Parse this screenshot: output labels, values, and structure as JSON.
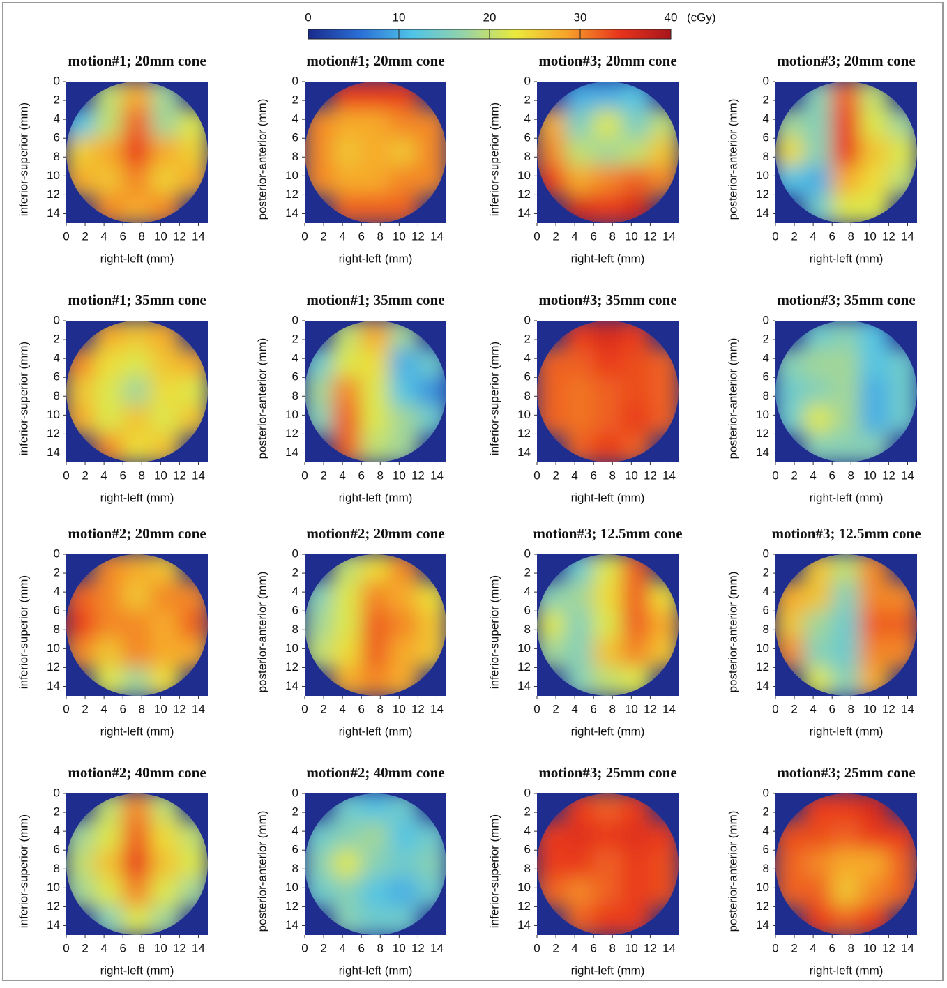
{
  "colorscale": {
    "label": "(cGy)",
    "lim": [
      0,
      40
    ],
    "ticks": [
      0,
      10,
      20,
      30,
      40
    ],
    "colors": [
      "#1a2a8c",
      "#2a6fd6",
      "#4fc3e8",
      "#95d3a8",
      "#eaea3c",
      "#f7a32a",
      "#e8341c",
      "#a8161c"
    ]
  },
  "chart_data": [
    {
      "type": "heatmap",
      "title": "motion#1; 20mm cone",
      "x_label": "right-left (mm)",
      "y_label": "inferior-superior (mm)",
      "xlim": [
        0,
        15
      ],
      "ylim": [
        0,
        15
      ],
      "xticks": [
        0,
        2,
        4,
        6,
        8,
        10,
        12,
        14
      ],
      "yticks": [
        0,
        2,
        4,
        6,
        8,
        10,
        12,
        14
      ],
      "values": [
        [
          null,
          20,
          28,
          18,
          null
        ],
        [
          12,
          20,
          32,
          18,
          22
        ],
        [
          25,
          28,
          34,
          28,
          25
        ],
        [
          28,
          26,
          30,
          25,
          28
        ],
        [
          null,
          30,
          28,
          30,
          null
        ]
      ]
    },
    {
      "type": "heatmap",
      "title": "motion#1; 20mm cone",
      "x_label": "right-left (mm)",
      "y_label": "posterior-anterior (mm)",
      "xlim": [
        0,
        15
      ],
      "ylim": [
        0,
        15
      ],
      "xticks": [
        0,
        2,
        4,
        6,
        8,
        10,
        12,
        14
      ],
      "yticks": [
        0,
        2,
        4,
        6,
        8,
        10,
        12,
        14
      ],
      "values": [
        [
          null,
          34,
          34,
          34,
          null
        ],
        [
          30,
          28,
          28,
          30,
          30
        ],
        [
          30,
          26,
          28,
          26,
          30
        ],
        [
          30,
          28,
          28,
          30,
          30
        ],
        [
          null,
          32,
          32,
          32,
          null
        ]
      ]
    },
    {
      "type": "heatmap",
      "title": "motion#3; 20mm cone",
      "x_label": "right-left (mm)",
      "y_label": "inferior-superior (mm)",
      "xlim": [
        0,
        15
      ],
      "ylim": [
        0,
        15
      ],
      "xticks": [
        0,
        2,
        4,
        6,
        8,
        10,
        12,
        14
      ],
      "yticks": [
        0,
        2,
        4,
        6,
        8,
        10,
        12,
        14
      ],
      "values": [
        [
          null,
          10,
          10,
          12,
          null
        ],
        [
          28,
          15,
          22,
          15,
          20
        ],
        [
          30,
          20,
          18,
          20,
          26
        ],
        [
          34,
          28,
          30,
          32,
          30
        ],
        [
          null,
          36,
          34,
          36,
          null
        ]
      ]
    },
    {
      "type": "heatmap",
      "title": "motion#3; 20mm cone",
      "x_label": "right-left (mm)",
      "y_label": "posterior-anterior (mm)",
      "xlim": [
        0,
        15
      ],
      "ylim": [
        0,
        15
      ],
      "xticks": [
        0,
        2,
        4,
        6,
        8,
        10,
        12,
        14
      ],
      "yticks": [
        0,
        2,
        4,
        6,
        8,
        10,
        12,
        14
      ],
      "values": [
        [
          null,
          16,
          32,
          20,
          null
        ],
        [
          18,
          16,
          34,
          22,
          18
        ],
        [
          24,
          16,
          34,
          26,
          22
        ],
        [
          12,
          10,
          28,
          24,
          20
        ],
        [
          null,
          14,
          22,
          22,
          null
        ]
      ]
    },
    {
      "type": "heatmap",
      "title": "motion#1; 35mm cone",
      "x_label": "right-left (mm)",
      "y_label": "inferior-superior (mm)",
      "xlim": [
        0,
        15
      ],
      "ylim": [
        0,
        15
      ],
      "xticks": [
        0,
        2,
        4,
        6,
        8,
        10,
        12,
        14
      ],
      "yticks": [
        0,
        2,
        4,
        6,
        8,
        10,
        12,
        14
      ],
      "values": [
        [
          null,
          28,
          26,
          28,
          null
        ],
        [
          30,
          24,
          22,
          26,
          28
        ],
        [
          26,
          22,
          18,
          24,
          22
        ],
        [
          28,
          22,
          26,
          22,
          26
        ],
        [
          null,
          30,
          24,
          26,
          null
        ]
      ]
    },
    {
      "type": "heatmap",
      "title": "motion#1; 35mm cone",
      "x_label": "right-left (mm)",
      "y_label": "posterior-anterior (mm)",
      "xlim": [
        0,
        15
      ],
      "ylim": [
        0,
        15
      ],
      "xticks": [
        0,
        2,
        4,
        6,
        8,
        10,
        12,
        14
      ],
      "yticks": [
        0,
        2,
        4,
        6,
        8,
        10,
        12,
        14
      ],
      "values": [
        [
          null,
          20,
          28,
          18,
          null
        ],
        [
          14,
          22,
          24,
          10,
          14
        ],
        [
          18,
          30,
          22,
          12,
          8
        ],
        [
          16,
          32,
          22,
          18,
          14
        ],
        [
          null,
          32,
          20,
          18,
          null
        ]
      ]
    },
    {
      "type": "heatmap",
      "title": "motion#3; 35mm cone",
      "x_label": "right-left (mm)",
      "y_label": "inferior-superior (mm)",
      "xlim": [
        0,
        15
      ],
      "ylim": [
        0,
        15
      ],
      "xticks": [
        0,
        2,
        4,
        6,
        8,
        10,
        12,
        14
      ],
      "yticks": [
        0,
        2,
        4,
        6,
        8,
        10,
        12,
        14
      ],
      "values": [
        [
          null,
          34,
          36,
          34,
          null
        ],
        [
          32,
          32,
          34,
          33,
          32
        ],
        [
          32,
          31,
          32,
          33,
          32
        ],
        [
          32,
          31,
          32,
          34,
          32
        ],
        [
          null,
          32,
          34,
          32,
          null
        ]
      ]
    },
    {
      "type": "heatmap",
      "title": "motion#3; 35mm cone",
      "x_label": "right-left (mm)",
      "y_label": "posterior-anterior (mm)",
      "xlim": [
        0,
        15
      ],
      "ylim": [
        0,
        15
      ],
      "xticks": [
        0,
        2,
        4,
        6,
        8,
        10,
        12,
        14
      ],
      "yticks": [
        0,
        2,
        4,
        6,
        8,
        10,
        12,
        14
      ],
      "values": [
        [
          null,
          14,
          16,
          12,
          null
        ],
        [
          16,
          18,
          18,
          12,
          14
        ],
        [
          14,
          16,
          18,
          10,
          14
        ],
        [
          14,
          22,
          18,
          10,
          14
        ],
        [
          null,
          16,
          16,
          16,
          null
        ]
      ]
    },
    {
      "type": "heatmap",
      "title": "motion#2; 20mm cone",
      "x_label": "right-left (mm)",
      "y_label": "inferior-superior (mm)",
      "xlim": [
        0,
        15
      ],
      "ylim": [
        0,
        15
      ],
      "xticks": [
        0,
        2,
        4,
        6,
        8,
        10,
        12,
        14
      ],
      "yticks": [
        0,
        2,
        4,
        6,
        8,
        10,
        12,
        14
      ],
      "values": [
        [
          null,
          30,
          28,
          26,
          null
        ],
        [
          32,
          30,
          26,
          30,
          30
        ],
        [
          34,
          30,
          30,
          28,
          32
        ],
        [
          30,
          26,
          30,
          28,
          28
        ],
        [
          null,
          22,
          18,
          24,
          null
        ]
      ]
    },
    {
      "type": "heatmap",
      "title": "motion#2; 20mm cone",
      "x_label": "right-left (mm)",
      "y_label": "posterior-anterior (mm)",
      "xlim": [
        0,
        15
      ],
      "ylim": [
        0,
        15
      ],
      "xticks": [
        0,
        2,
        4,
        6,
        8,
        10,
        12,
        14
      ],
      "yticks": [
        0,
        2,
        4,
        6,
        8,
        10,
        12,
        14
      ],
      "values": [
        [
          null,
          20,
          24,
          30,
          null
        ],
        [
          16,
          22,
          30,
          28,
          24
        ],
        [
          18,
          22,
          32,
          30,
          26
        ],
        [
          20,
          24,
          32,
          28,
          26
        ],
        [
          null,
          28,
          30,
          28,
          null
        ]
      ]
    },
    {
      "type": "heatmap",
      "title": "motion#3; 12.5mm cone",
      "x_label": "right-left (mm)",
      "y_label": "inferior-superior (mm)",
      "xlim": [
        0,
        15
      ],
      "ylim": [
        0,
        15
      ],
      "xticks": [
        0,
        2,
        4,
        6,
        8,
        10,
        12,
        14
      ],
      "yticks": [
        0,
        2,
        4,
        6,
        8,
        10,
        12,
        14
      ],
      "values": [
        [
          null,
          14,
          22,
          32,
          null
        ],
        [
          16,
          18,
          24,
          32,
          24
        ],
        [
          22,
          16,
          22,
          32,
          28
        ],
        [
          18,
          16,
          26,
          30,
          26
        ],
        [
          null,
          16,
          20,
          22,
          null
        ]
      ]
    },
    {
      "type": "heatmap",
      "title": "motion#3; 12.5mm cone",
      "x_label": "right-left (mm)",
      "y_label": "posterior-anterior (mm)",
      "xlim": [
        0,
        15
      ],
      "ylim": [
        0,
        15
      ],
      "xticks": [
        0,
        2,
        4,
        6,
        8,
        10,
        12,
        14
      ],
      "yticks": [
        0,
        2,
        4,
        6,
        8,
        10,
        12,
        14
      ],
      "values": [
        [
          null,
          26,
          20,
          30,
          null
        ],
        [
          28,
          26,
          16,
          30,
          30
        ],
        [
          26,
          18,
          14,
          32,
          32
        ],
        [
          30,
          16,
          14,
          30,
          30
        ],
        [
          null,
          22,
          16,
          28,
          null
        ]
      ]
    },
    {
      "type": "heatmap",
      "title": "motion#2; 40mm cone",
      "x_label": "right-left (mm)",
      "y_label": "inferior-superior (mm)",
      "xlim": [
        0,
        15
      ],
      "ylim": [
        0,
        15
      ],
      "xticks": [
        0,
        2,
        4,
        6,
        8,
        10,
        12,
        14
      ],
      "yticks": [
        0,
        2,
        4,
        6,
        8,
        10,
        12,
        14
      ],
      "values": [
        [
          null,
          20,
          30,
          20,
          null
        ],
        [
          18,
          22,
          32,
          24,
          20
        ],
        [
          20,
          26,
          34,
          26,
          22
        ],
        [
          18,
          22,
          30,
          22,
          18
        ],
        [
          null,
          16,
          22,
          18,
          null
        ]
      ]
    },
    {
      "type": "heatmap",
      "title": "motion#2; 40mm cone",
      "x_label": "right-left (mm)",
      "y_label": "posterior-anterior (mm)",
      "xlim": [
        0,
        15
      ],
      "ylim": [
        0,
        15
      ],
      "xticks": [
        0,
        2,
        4,
        6,
        8,
        10,
        12,
        14
      ],
      "yticks": [
        0,
        2,
        4,
        6,
        8,
        10,
        12,
        14
      ],
      "values": [
        [
          null,
          14,
          12,
          14,
          null
        ],
        [
          14,
          16,
          18,
          12,
          14
        ],
        [
          16,
          22,
          16,
          14,
          16
        ],
        [
          14,
          16,
          12,
          10,
          14
        ],
        [
          null,
          16,
          14,
          14,
          null
        ]
      ]
    },
    {
      "type": "heatmap",
      "title": "motion#3; 25mm cone",
      "x_label": "right-left (mm)",
      "y_label": "inferior-superior (mm)",
      "xlim": [
        0,
        15
      ],
      "ylim": [
        0,
        15
      ],
      "xticks": [
        0,
        2,
        4,
        6,
        8,
        10,
        12,
        14
      ],
      "yticks": [
        0,
        2,
        4,
        6,
        8,
        10,
        12,
        14
      ],
      "values": [
        [
          null,
          34,
          32,
          34,
          null
        ],
        [
          34,
          35,
          34,
          35,
          34
        ],
        [
          34,
          34,
          32,
          34,
          33
        ],
        [
          32,
          30,
          32,
          34,
          33
        ],
        [
          null,
          32,
          34,
          34,
          null
        ]
      ]
    },
    {
      "type": "heatmap",
      "title": "motion#3; 25mm cone",
      "x_label": "right-left (mm)",
      "y_label": "posterior-anterior (mm)",
      "xlim": [
        0,
        15
      ],
      "ylim": [
        0,
        15
      ],
      "xticks": [
        0,
        2,
        4,
        6,
        8,
        10,
        12,
        14
      ],
      "yticks": [
        0,
        2,
        4,
        6,
        8,
        10,
        12,
        14
      ],
      "values": [
        [
          null,
          34,
          34,
          36,
          null
        ],
        [
          33,
          33,
          32,
          34,
          34
        ],
        [
          32,
          30,
          28,
          28,
          32
        ],
        [
          32,
          32,
          26,
          30,
          32
        ],
        [
          null,
          34,
          32,
          34,
          null
        ]
      ]
    }
  ]
}
